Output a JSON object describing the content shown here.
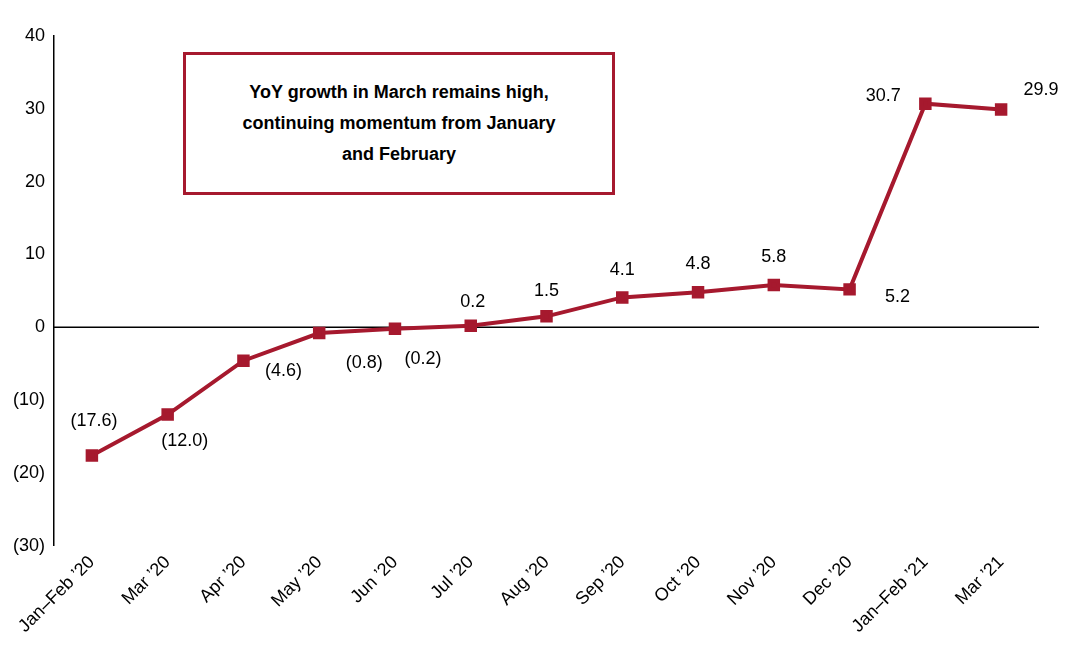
{
  "chart_data": {
    "type": "line",
    "annotation": "YoY growth in March remains high, continuing momentum from January and February",
    "categories": [
      "Jan–Feb ’20",
      "Mar ’20",
      "Apr ’20",
      "May ’20",
      "Jun ’20",
      "Jul ’20",
      "Aug ’20",
      "Sep ’20",
      "Oct ’20",
      "Nov ’20",
      "Dec ’20",
      "Jan–Feb ’21",
      "Mar ’21"
    ],
    "values": [
      -17.6,
      -12.0,
      -4.6,
      -0.8,
      -0.2,
      0.2,
      1.5,
      4.1,
      4.8,
      5.8,
      5.2,
      30.7,
      29.9
    ],
    "value_labels": [
      "(17.6)",
      "(12.0)",
      "(4.6)",
      "(0.8)",
      "(0.2)",
      "0.2",
      "1.5",
      "4.1",
      "4.8",
      "5.8",
      "5.2",
      "30.7",
      "29.9"
    ],
    "color": "#a6192e",
    "marker": "square",
    "ylim": [
      -30,
      40
    ],
    "yticks": [
      {
        "value": -30,
        "label": "(30)"
      },
      {
        "value": -20,
        "label": "(20)"
      },
      {
        "value": -10,
        "label": "(10)"
      },
      0,
      10,
      20,
      30,
      40
    ],
    "grid": false,
    "data_labels": true
  }
}
